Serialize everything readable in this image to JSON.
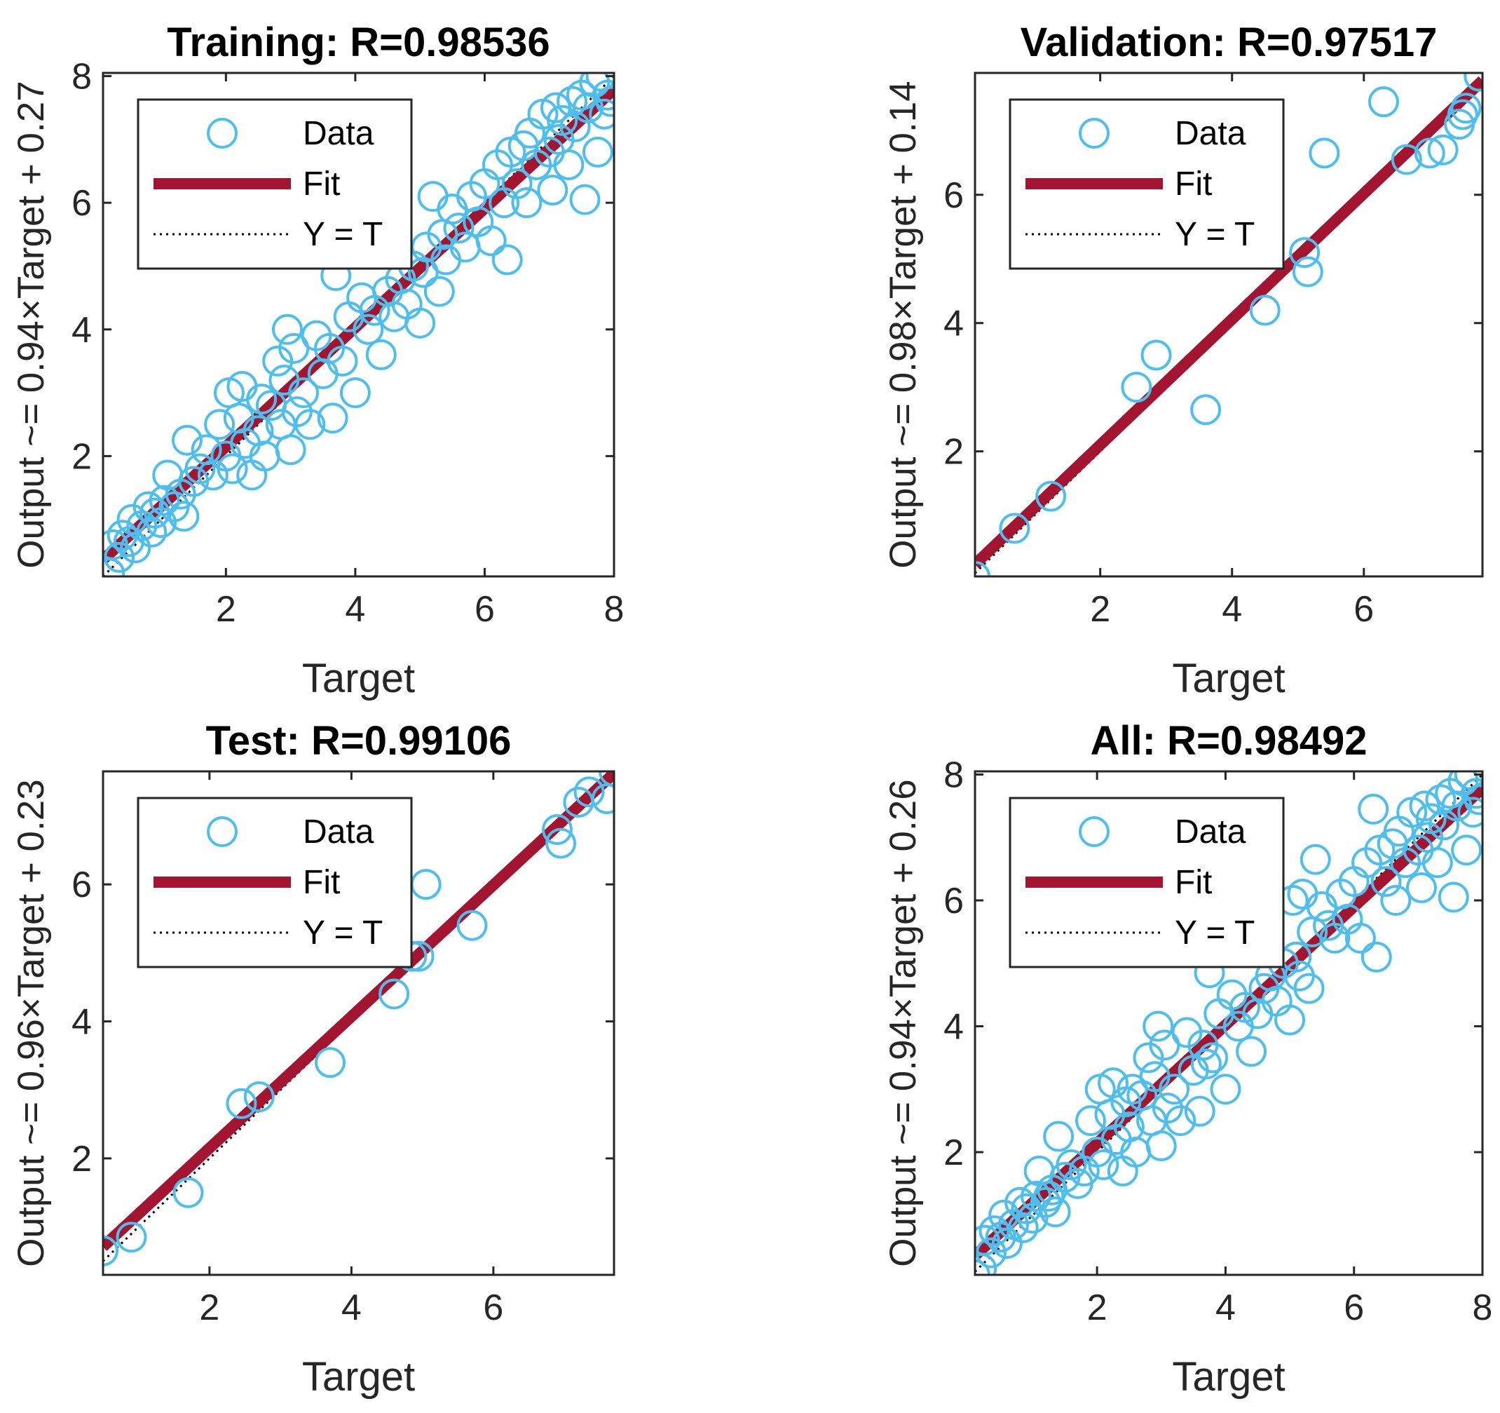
{
  "colors": {
    "data": "#4DBEEE",
    "fit": "#A2142F",
    "ident": "#000000",
    "axis": "#262626"
  },
  "legend": {
    "data_label": "Data",
    "fit_label": "Fit",
    "ident_label": "Y = T"
  },
  "chart_data": [
    {
      "type": "scatter",
      "title": "Training: R=0.98536",
      "xlabel": "Target",
      "ylabel": "Output ~= 0.94×Target + 0.27",
      "xlim": [
        0.1,
        8.0
      ],
      "ylim": [
        0.1,
        8.05
      ],
      "xticks": [
        2,
        4,
        6,
        8
      ],
      "yticks": [
        2,
        4,
        6,
        8
      ],
      "fit": {
        "slope": 0.94,
        "intercept": 0.27
      },
      "points": [
        [
          0.2,
          0.15
        ],
        [
          0.25,
          0.6
        ],
        [
          0.35,
          0.4
        ],
        [
          0.4,
          0.75
        ],
        [
          0.5,
          0.65
        ],
        [
          0.55,
          1.0
        ],
        [
          0.6,
          0.55
        ],
        [
          0.7,
          0.9
        ],
        [
          0.8,
          1.2
        ],
        [
          0.85,
          0.8
        ],
        [
          0.9,
          1.1
        ],
        [
          1.0,
          0.95
        ],
        [
          1.05,
          1.3
        ],
        [
          1.1,
          1.7
        ],
        [
          1.2,
          1.2
        ],
        [
          1.3,
          1.4
        ],
        [
          1.35,
          1.05
        ],
        [
          1.4,
          2.25
        ],
        [
          1.5,
          1.6
        ],
        [
          1.6,
          1.8
        ],
        [
          1.7,
          2.1
        ],
        [
          1.8,
          1.7
        ],
        [
          1.9,
          2.5
        ],
        [
          2.0,
          2.0
        ],
        [
          2.05,
          3.0
        ],
        [
          2.1,
          1.8
        ],
        [
          2.2,
          2.6
        ],
        [
          2.25,
          3.1
        ],
        [
          2.3,
          2.2
        ],
        [
          2.4,
          1.7
        ],
        [
          2.5,
          2.4
        ],
        [
          2.55,
          2.9
        ],
        [
          2.6,
          2.0
        ],
        [
          2.7,
          2.8
        ],
        [
          2.8,
          3.5
        ],
        [
          2.85,
          2.5
        ],
        [
          2.9,
          3.2
        ],
        [
          2.95,
          4.0
        ],
        [
          3.0,
          2.1
        ],
        [
          3.05,
          3.7
        ],
        [
          3.1,
          2.7
        ],
        [
          3.2,
          3.0
        ],
        [
          3.3,
          2.5
        ],
        [
          3.4,
          3.9
        ],
        [
          3.5,
          3.3
        ],
        [
          3.6,
          3.7
        ],
        [
          3.65,
          2.6
        ],
        [
          3.7,
          4.85
        ],
        [
          3.8,
          3.5
        ],
        [
          3.9,
          4.2
        ],
        [
          4.0,
          3.0
        ],
        [
          4.1,
          4.5
        ],
        [
          4.2,
          4.0
        ],
        [
          4.3,
          4.3
        ],
        [
          4.4,
          3.6
        ],
        [
          4.5,
          4.6
        ],
        [
          4.6,
          4.2
        ],
        [
          4.7,
          4.8
        ],
        [
          4.8,
          4.4
        ],
        [
          4.9,
          5.0
        ],
        [
          5.0,
          4.1
        ],
        [
          5.05,
          4.9
        ],
        [
          5.1,
          5.3
        ],
        [
          5.2,
          6.1
        ],
        [
          5.3,
          4.6
        ],
        [
          5.35,
          5.5
        ],
        [
          5.4,
          5.1
        ],
        [
          5.5,
          5.9
        ],
        [
          5.6,
          5.6
        ],
        [
          5.7,
          5.3
        ],
        [
          5.8,
          6.1
        ],
        [
          5.9,
          5.7
        ],
        [
          6.0,
          6.3
        ],
        [
          6.1,
          5.4
        ],
        [
          6.2,
          6.6
        ],
        [
          6.3,
          6.0
        ],
        [
          6.35,
          5.1
        ],
        [
          6.4,
          6.8
        ],
        [
          6.5,
          6.3
        ],
        [
          6.6,
          6.9
        ],
        [
          6.65,
          6.0
        ],
        [
          6.7,
          7.1
        ],
        [
          6.8,
          6.6
        ],
        [
          6.9,
          7.4
        ],
        [
          7.0,
          6.8
        ],
        [
          7.05,
          6.2
        ],
        [
          7.1,
          7.5
        ],
        [
          7.15,
          7.0
        ],
        [
          7.2,
          7.3
        ],
        [
          7.3,
          6.6
        ],
        [
          7.35,
          7.6
        ],
        [
          7.4,
          7.2
        ],
        [
          7.5,
          7.7
        ],
        [
          7.55,
          6.05
        ],
        [
          7.6,
          7.5
        ],
        [
          7.7,
          7.9
        ],
        [
          7.75,
          6.8
        ],
        [
          7.8,
          8.0
        ],
        [
          7.85,
          7.4
        ],
        [
          7.9,
          7.7
        ],
        [
          7.95,
          7.6
        ]
      ]
    },
    {
      "type": "scatter",
      "title": "Validation: R=0.97517",
      "xlabel": "Target",
      "ylabel": "Output ~= 0.98×Target + 0.14",
      "xlim": [
        0.1,
        7.8
      ],
      "ylim": [
        0.05,
        7.9
      ],
      "xticks": [
        2,
        4,
        6
      ],
      "yticks": [
        2,
        4,
        6
      ],
      "fit": {
        "slope": 0.98,
        "intercept": 0.14
      },
      "points": [
        [
          0.1,
          0.05
        ],
        [
          0.7,
          0.8
        ],
        [
          1.25,
          1.3
        ],
        [
          2.55,
          3.0
        ],
        [
          2.85,
          3.5
        ],
        [
          3.6,
          2.65
        ],
        [
          4.5,
          4.2
        ],
        [
          5.1,
          5.1
        ],
        [
          5.15,
          4.8
        ],
        [
          5.4,
          6.65
        ],
        [
          6.3,
          7.45
        ],
        [
          6.65,
          6.55
        ],
        [
          7.0,
          6.65
        ],
        [
          7.2,
          6.7
        ],
        [
          7.45,
          7.1
        ],
        [
          7.5,
          7.25
        ],
        [
          7.55,
          7.35
        ],
        [
          7.75,
          7.85
        ]
      ]
    },
    {
      "type": "scatter",
      "title": "Test: R=0.99106",
      "xlabel": "Target",
      "ylabel": "Output ~= 0.96×Target + 0.23",
      "xlim": [
        0.5,
        7.7
      ],
      "ylim": [
        0.3,
        7.65
      ],
      "xticks": [
        2,
        4,
        6
      ],
      "yticks": [
        2,
        4,
        6
      ],
      "fit": {
        "slope": 0.96,
        "intercept": 0.23
      },
      "points": [
        [
          0.5,
          0.65
        ],
        [
          0.9,
          0.85
        ],
        [
          1.7,
          1.5
        ],
        [
          2.45,
          2.8
        ],
        [
          2.7,
          2.9
        ],
        [
          3.7,
          3.4
        ],
        [
          4.6,
          4.4
        ],
        [
          4.85,
          4.95
        ],
        [
          4.95,
          4.95
        ],
        [
          5.05,
          6.0
        ],
        [
          5.7,
          5.4
        ],
        [
          6.9,
          6.8
        ],
        [
          6.95,
          6.6
        ],
        [
          7.2,
          7.2
        ],
        [
          7.35,
          7.35
        ],
        [
          7.6,
          7.25
        ],
        [
          7.7,
          7.65
        ]
      ]
    },
    {
      "type": "scatter",
      "title": "All: R=0.98492",
      "xlabel": "Target",
      "ylabel": "Output ~= 0.94×Target + 0.26",
      "xlim": [
        0.1,
        8.0
      ],
      "ylim": [
        0.05,
        8.05
      ],
      "xticks": [
        2,
        4,
        6,
        8
      ],
      "yticks": [
        2,
        4,
        6,
        8
      ],
      "fit": {
        "slope": 0.94,
        "intercept": 0.26
      },
      "points": [
        [
          0.1,
          0.05
        ],
        [
          0.2,
          0.15
        ],
        [
          0.25,
          0.6
        ],
        [
          0.35,
          0.4
        ],
        [
          0.4,
          0.75
        ],
        [
          0.5,
          0.65
        ],
        [
          0.55,
          1.0
        ],
        [
          0.6,
          0.55
        ],
        [
          0.7,
          0.85
        ],
        [
          0.8,
          1.2
        ],
        [
          0.85,
          0.8
        ],
        [
          0.9,
          1.1
        ],
        [
          1.0,
          0.95
        ],
        [
          1.05,
          1.3
        ],
        [
          1.1,
          1.7
        ],
        [
          1.2,
          1.2
        ],
        [
          1.25,
          1.3
        ],
        [
          1.3,
          1.4
        ],
        [
          1.35,
          1.05
        ],
        [
          1.4,
          2.25
        ],
        [
          1.5,
          1.6
        ],
        [
          1.6,
          1.8
        ],
        [
          1.7,
          1.5
        ],
        [
          1.8,
          1.7
        ],
        [
          1.9,
          2.5
        ],
        [
          2.0,
          2.0
        ],
        [
          2.05,
          3.0
        ],
        [
          2.1,
          1.8
        ],
        [
          2.2,
          2.6
        ],
        [
          2.25,
          3.1
        ],
        [
          2.3,
          2.2
        ],
        [
          2.4,
          1.7
        ],
        [
          2.45,
          2.8
        ],
        [
          2.5,
          2.4
        ],
        [
          2.55,
          3.0
        ],
        [
          2.6,
          2.0
        ],
        [
          2.7,
          2.9
        ],
        [
          2.8,
          3.5
        ],
        [
          2.85,
          2.5
        ],
        [
          2.9,
          3.2
        ],
        [
          2.95,
          4.0
        ],
        [
          3.0,
          2.1
        ],
        [
          3.05,
          3.7
        ],
        [
          3.1,
          2.7
        ],
        [
          3.2,
          3.0
        ],
        [
          3.3,
          2.5
        ],
        [
          3.4,
          3.9
        ],
        [
          3.5,
          3.3
        ],
        [
          3.6,
          2.65
        ],
        [
          3.65,
          3.7
        ],
        [
          3.7,
          3.4
        ],
        [
          3.75,
          4.85
        ],
        [
          3.8,
          3.5
        ],
        [
          3.9,
          4.2
        ],
        [
          4.0,
          3.0
        ],
        [
          4.1,
          4.5
        ],
        [
          4.2,
          4.0
        ],
        [
          4.3,
          4.3
        ],
        [
          4.4,
          3.6
        ],
        [
          4.5,
          4.2
        ],
        [
          4.6,
          4.6
        ],
        [
          4.7,
          4.8
        ],
        [
          4.8,
          4.4
        ],
        [
          4.9,
          5.0
        ],
        [
          5.0,
          4.1
        ],
        [
          5.05,
          6.0
        ],
        [
          5.1,
          5.1
        ],
        [
          5.15,
          4.8
        ],
        [
          5.2,
          6.1
        ],
        [
          5.3,
          4.6
        ],
        [
          5.35,
          5.5
        ],
        [
          5.4,
          6.65
        ],
        [
          5.5,
          5.9
        ],
        [
          5.6,
          5.6
        ],
        [
          5.7,
          5.4
        ],
        [
          5.8,
          6.1
        ],
        [
          5.9,
          5.7
        ],
        [
          6.0,
          6.3
        ],
        [
          6.1,
          5.4
        ],
        [
          6.2,
          6.6
        ],
        [
          6.3,
          7.45
        ],
        [
          6.35,
          5.1
        ],
        [
          6.4,
          6.8
        ],
        [
          6.5,
          6.3
        ],
        [
          6.6,
          6.9
        ],
        [
          6.65,
          6.0
        ],
        [
          6.7,
          7.1
        ],
        [
          6.8,
          6.6
        ],
        [
          6.9,
          7.4
        ],
        [
          7.0,
          6.8
        ],
        [
          7.05,
          6.2
        ],
        [
          7.1,
          7.5
        ],
        [
          7.15,
          7.0
        ],
        [
          7.2,
          7.3
        ],
        [
          7.3,
          6.6
        ],
        [
          7.35,
          7.6
        ],
        [
          7.4,
          7.2
        ],
        [
          7.5,
          7.7
        ],
        [
          7.55,
          6.05
        ],
        [
          7.6,
          7.5
        ],
        [
          7.7,
          7.9
        ],
        [
          7.75,
          6.8
        ],
        [
          7.8,
          8.0
        ],
        [
          7.85,
          7.4
        ],
        [
          7.9,
          7.7
        ],
        [
          7.95,
          7.6
        ]
      ]
    }
  ]
}
